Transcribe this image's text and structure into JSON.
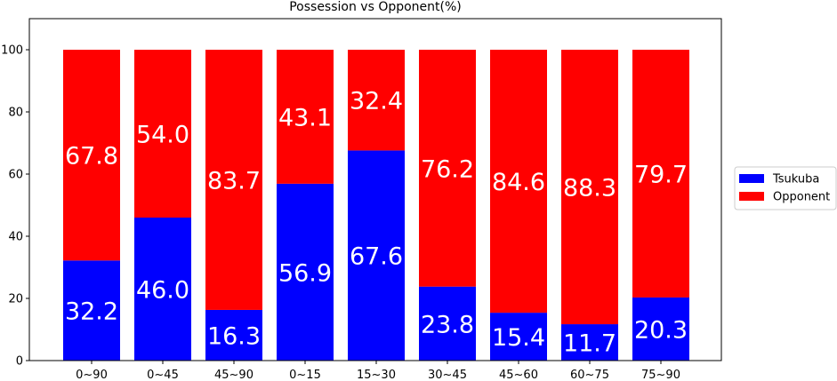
{
  "chart_data": {
    "type": "bar",
    "stacked": true,
    "title": "Possession vs Opponent(%)",
    "xlabel": "",
    "ylabel": "",
    "categories": [
      "0~90",
      "0~45",
      "45~90",
      "0~15",
      "15~30",
      "30~45",
      "45~60",
      "60~75",
      "75~90"
    ],
    "series": [
      {
        "name": "Tsukuba",
        "color": "#0000ff",
        "values": [
          32.2,
          46.0,
          16.3,
          56.9,
          67.6,
          23.8,
          15.4,
          11.7,
          20.3
        ]
      },
      {
        "name": "Opponent",
        "color": "#ff0000",
        "values": [
          67.8,
          54.0,
          83.7,
          43.1,
          32.4,
          76.2,
          84.6,
          88.3,
          79.7
        ]
      }
    ],
    "ylim": [
      0,
      110
    ],
    "yticks": [
      0,
      20,
      40,
      60,
      80,
      100
    ],
    "grid": false,
    "legend_position": "right"
  }
}
